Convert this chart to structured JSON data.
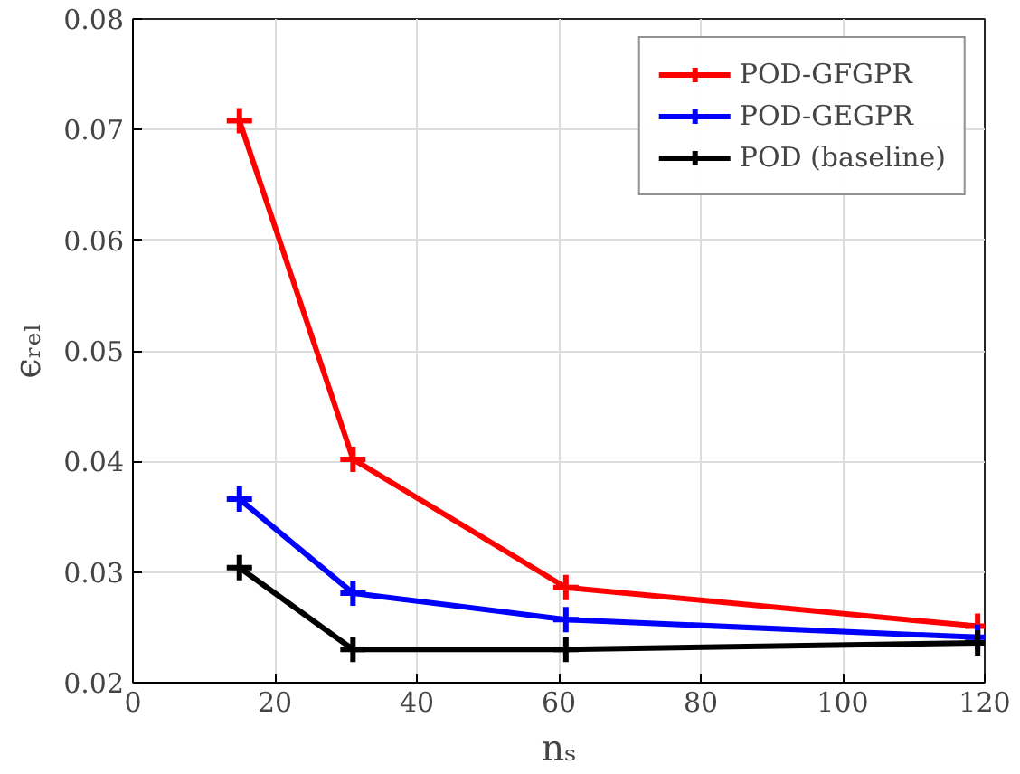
{
  "chart_data": {
    "type": "line",
    "xlabel": "nₛ",
    "ylabel": "ϵᵣₑₗ",
    "x": [
      15,
      31,
      61,
      119
    ],
    "series": [
      {
        "name": "POD-GFGPR",
        "color": "#ff0000",
        "values": [
          0.0708,
          0.0402,
          0.0286,
          0.0251
        ]
      },
      {
        "name": "POD-GEGPR",
        "color": "#0000ff",
        "values": [
          0.0366,
          0.0281,
          0.0257,
          0.0241
        ]
      },
      {
        "name": "POD (baseline)",
        "color": "#000000",
        "values": [
          0.0304,
          0.023,
          0.023,
          0.0236
        ]
      }
    ],
    "xlim": [
      0,
      120
    ],
    "ylim": [
      0.02,
      0.08
    ],
    "xticks": [
      0,
      20,
      40,
      60,
      80,
      100,
      120
    ],
    "yticks": [
      0.02,
      0.03,
      0.04,
      0.05,
      0.06,
      0.07,
      0.08
    ],
    "grid": true,
    "legend": "top right",
    "marker": "cross",
    "line_style": "solid"
  }
}
